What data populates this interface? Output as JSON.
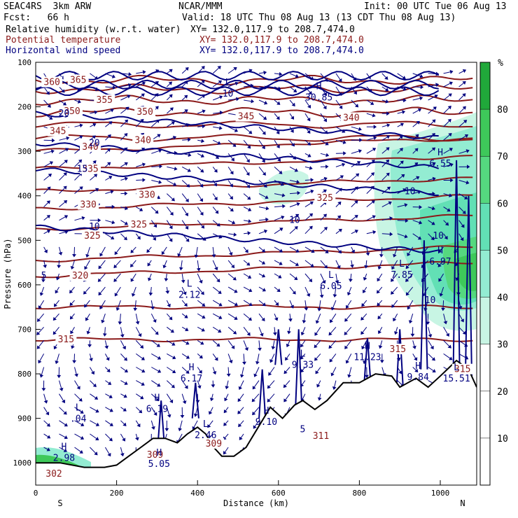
{
  "header": {
    "left_line1": "SEAC4RS  3km ARW",
    "center_line1": "NCAR/MMM",
    "right_line1": "Init: 00 UTC Tue 06 Aug 13",
    "left_line2": "Fcst:   66 h",
    "right_line2": "Valid: 18 UTC Thu 08 Aug 13 (13 CDT Thu 08 Aug 13)",
    "fields": [
      {
        "name": "Relative humidity (w.r.t. water)",
        "xy": "XY= 132.0,117.9 to 208.7,474.0",
        "color": "#000000"
      },
      {
        "name": "Potential temperature",
        "xy": "XY= 132.0,117.9 to 208.7,474.0",
        "color": "#8b1a1a"
      },
      {
        "name": "Horizontal wind speed",
        "xy": "XY= 132.0,117.9 to 208.7,474.0",
        "color": "#000080"
      }
    ]
  },
  "chart_data": {
    "type": "heatmap",
    "xlabel": "Distance (km)",
    "ylabel": "Pressure (hPa)",
    "xlim": [
      0,
      1090
    ],
    "ylim": [
      1050,
      100
    ],
    "x_ticks": [
      0,
      200,
      400,
      600,
      800,
      1000
    ],
    "y_ticks": [
      100,
      200,
      300,
      400,
      500,
      600,
      700,
      800,
      900,
      1000
    ],
    "x_end_labels": {
      "left": "S",
      "right": "N"
    },
    "colorbar": {
      "unit": "%",
      "ticks": [
        10,
        20,
        30,
        40,
        50,
        60,
        70,
        80
      ],
      "bands": [
        {
          "from": 0,
          "to": 30,
          "color": "#ffffff"
        },
        {
          "from": 30,
          "to": 40,
          "color": "#c8f5e4"
        },
        {
          "from": 40,
          "to": 50,
          "color": "#93ecd2"
        },
        {
          "from": 50,
          "to": 60,
          "color": "#62e0b5"
        },
        {
          "from": 60,
          "to": 70,
          "color": "#55d87f"
        },
        {
          "from": 70,
          "to": 80,
          "color": "#3ec85a"
        },
        {
          "from": 80,
          "to": 90,
          "color": "#20a83a"
        }
      ]
    },
    "potential_temperature_levels": [
      {
        "label": "365",
        "x": 105,
        "p": 140
      },
      {
        "label": "360",
        "x": 40,
        "p": 145
      },
      {
        "label": "355",
        "x": 170,
        "p": 185
      },
      {
        "label": "350",
        "x": 90,
        "p": 210
      },
      {
        "label": "350",
        "x": 270,
        "p": 212
      },
      {
        "label": "345",
        "x": 55,
        "p": 255
      },
      {
        "label": "345",
        "x": 520,
        "p": 222
      },
      {
        "label": "340",
        "x": 135,
        "p": 290
      },
      {
        "label": "340",
        "x": 265,
        "p": 275
      },
      {
        "label": "340",
        "x": 780,
        "p": 225
      },
      {
        "label": "335",
        "x": 135,
        "p": 340
      },
      {
        "label": "330",
        "x": 130,
        "p": 420
      },
      {
        "label": "330",
        "x": 275,
        "p": 398
      },
      {
        "label": "325",
        "x": 140,
        "p": 490
      },
      {
        "label": "325",
        "x": 715,
        "p": 405
      },
      {
        "label": "325",
        "x": 255,
        "p": 465
      },
      {
        "label": "320",
        "x": 110,
        "p": 580
      },
      {
        "label": "315",
        "x": 75,
        "p": 723
      },
      {
        "label": "315",
        "x": 895,
        "p": 745
      },
      {
        "label": "315",
        "x": 1055,
        "p": 790
      },
      {
        "label": "309",
        "x": 295,
        "p": 982
      },
      {
        "label": "309",
        "x": 440,
        "p": 957
      },
      {
        "label": "311",
        "x": 705,
        "p": 940
      },
      {
        "label": "302",
        "x": 45,
        "p": 1025
      }
    ],
    "wind_speed_labels": [
      {
        "label": "20",
        "x": 70,
        "p": 215
      },
      {
        "label": "20",
        "x": 145,
        "p": 282
      },
      {
        "label": "15",
        "x": 115,
        "p": 340
      },
      {
        "label": "10",
        "x": 145,
        "p": 470
      },
      {
        "label": "10",
        "x": 640,
        "p": 455
      },
      {
        "label": "10",
        "x": 925,
        "p": 390
      },
      {
        "label": "10",
        "x": 995,
        "p": 490
      },
      {
        "label": "10",
        "x": 975,
        "p": 635
      },
      {
        "label": "5",
        "x": 660,
        "p": 925
      },
      {
        "label": "5",
        "x": 20,
        "p": 580
      }
    ],
    "extrema": [
      {
        "kind": "L",
        "value": "2.12",
        "x": 380,
        "p": 620
      },
      {
        "kind": "L",
        "value": "6.05",
        "x": 730,
        "p": 600
      },
      {
        "kind": "L",
        "value": "7.85",
        "x": 905,
        "p": 575
      },
      {
        "kind": "H",
        "value": "6.55",
        "x": 1000,
        "p": 325
      },
      {
        "kind": "H",
        "value": "6.97",
        "x": 1000,
        "p": 545
      },
      {
        "kind": "L",
        "value": "9.33",
        "x": 660,
        "p": 777
      },
      {
        "kind": "H",
        "value": "11.23",
        "x": 820,
        "p": 760
      },
      {
        "kind": "H",
        "value": "6.17",
        "x": 385,
        "p": 808
      },
      {
        "kind": "H",
        "value": "6.19",
        "x": 300,
        "p": 876
      },
      {
        "kind": "L",
        "value": "2.46",
        "x": 420,
        "p": 935
      },
      {
        "kind": "H",
        "value": "9.10",
        "x": 570,
        "p": 905
      },
      {
        "kind": "L",
        "value": ".04",
        "x": 105,
        "p": 898
      },
      {
        "kind": "H",
        "value": "2.98",
        "x": 70,
        "p": 986
      },
      {
        "kind": "H",
        "value": "5.05",
        "x": 305,
        "p": 1000
      },
      {
        "kind": "H",
        "value": "9.84",
        "x": 945,
        "p": 805
      },
      {
        "kind": "L",
        "value": "15.51",
        "x": 1040,
        "p": 808
      },
      {
        "kind": "H",
        "value": "30.85",
        "x": 700,
        "p": 176
      },
      {
        "kind": "L",
        "value": "10",
        "x": 475,
        "p": 168
      }
    ],
    "terrain_surface": [
      {
        "x": 0,
        "p": 1000
      },
      {
        "x": 60,
        "p": 1000
      },
      {
        "x": 120,
        "p": 1010
      },
      {
        "x": 170,
        "p": 1010
      },
      {
        "x": 200,
        "p": 1005
      },
      {
        "x": 230,
        "p": 985
      },
      {
        "x": 260,
        "p": 965
      },
      {
        "x": 290,
        "p": 945
      },
      {
        "x": 320,
        "p": 945
      },
      {
        "x": 350,
        "p": 955
      },
      {
        "x": 375,
        "p": 935
      },
      {
        "x": 400,
        "p": 920
      },
      {
        "x": 420,
        "p": 935
      },
      {
        "x": 440,
        "p": 965
      },
      {
        "x": 460,
        "p": 985
      },
      {
        "x": 490,
        "p": 985
      },
      {
        "x": 520,
        "p": 965
      },
      {
        "x": 550,
        "p": 920
      },
      {
        "x": 580,
        "p": 875
      },
      {
        "x": 610,
        "p": 900
      },
      {
        "x": 640,
        "p": 870
      },
      {
        "x": 660,
        "p": 860
      },
      {
        "x": 690,
        "p": 880
      },
      {
        "x": 720,
        "p": 860
      },
      {
        "x": 760,
        "p": 820
      },
      {
        "x": 800,
        "p": 820
      },
      {
        "x": 840,
        "p": 800
      },
      {
        "x": 880,
        "p": 805
      },
      {
        "x": 900,
        "p": 830
      },
      {
        "x": 940,
        "p": 810
      },
      {
        "x": 970,
        "p": 830
      },
      {
        "x": 1000,
        "p": 805
      },
      {
        "x": 1040,
        "p": 770
      },
      {
        "x": 1070,
        "p": 790
      },
      {
        "x": 1090,
        "p": 830
      }
    ]
  }
}
